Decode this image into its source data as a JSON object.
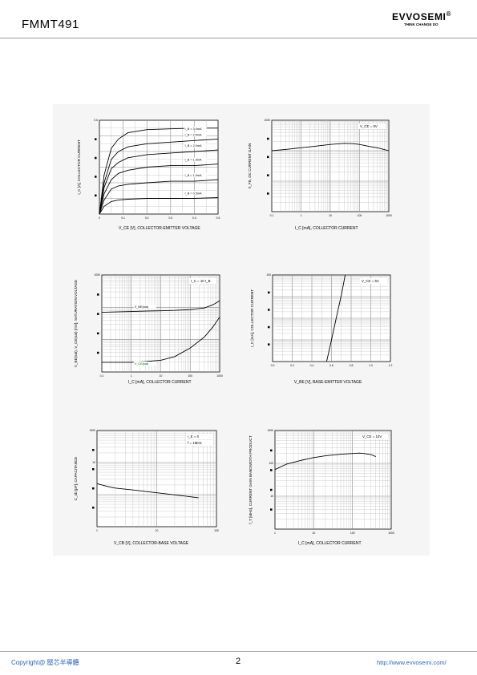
{
  "header": {
    "part_number": "FMMT491",
    "logo": "EVVOSEMI",
    "logo_mark": "®",
    "tagline": "THINK CHANGE DO"
  },
  "footer": {
    "copyright": "Copyright@ 壓芯半導體",
    "page": "2",
    "url": "http://www.evvosemi.com/"
  },
  "chart_data": [
    {
      "type": "line",
      "xlabel": "V_CE [V], COLLECTOR-EMITTER VOLTAGE",
      "ylabel": "I_C [A], COLLECTOR CURRENT",
      "xlim": [
        0,
        0.5
      ],
      "ylim": [
        0,
        0.6
      ],
      "x_ticks": [
        "0",
        "0.1",
        "0.2",
        "0.3",
        "0.4",
        "0.5"
      ],
      "y_ticks": [
        "0.6"
      ],
      "series": [
        {
          "name": "I_B = 3.0mA",
          "x": [
            0,
            0.02,
            0.05,
            0.08,
            0.12,
            0.2,
            0.3,
            0.4,
            0.5
          ],
          "y": [
            0,
            0.25,
            0.42,
            0.48,
            0.52,
            0.54,
            0.545,
            0.55,
            0.55
          ]
        },
        {
          "name": "I_B = 2.5mA",
          "x": [
            0,
            0.02,
            0.05,
            0.08,
            0.12,
            0.2,
            0.3,
            0.4,
            0.5
          ],
          "y": [
            0,
            0.2,
            0.35,
            0.4,
            0.43,
            0.45,
            0.46,
            0.47,
            0.48
          ]
        },
        {
          "name": "I_B = 2.0mA",
          "x": [
            0,
            0.02,
            0.05,
            0.08,
            0.12,
            0.2,
            0.3,
            0.4,
            0.5
          ],
          "y": [
            0,
            0.17,
            0.29,
            0.33,
            0.36,
            0.38,
            0.39,
            0.4,
            0.41
          ]
        },
        {
          "name": "I_B = 1.5mA",
          "x": [
            0,
            0.02,
            0.05,
            0.08,
            0.12,
            0.2,
            0.3,
            0.4,
            0.5
          ],
          "y": [
            0,
            0.13,
            0.22,
            0.26,
            0.28,
            0.3,
            0.31,
            0.31,
            0.32
          ]
        },
        {
          "name": "I_B = 1.0mA",
          "x": [
            0,
            0.02,
            0.05,
            0.08,
            0.12,
            0.2,
            0.3,
            0.4,
            0.5
          ],
          "y": [
            0,
            0.09,
            0.16,
            0.18,
            0.19,
            0.2,
            0.21,
            0.21,
            0.22
          ]
        },
        {
          "name": "I_B = 0.5mA",
          "x": [
            0,
            0.02,
            0.05,
            0.08,
            0.12,
            0.2,
            0.3,
            0.4,
            0.5
          ],
          "y": [
            0,
            0.05,
            0.08,
            0.09,
            0.095,
            0.1,
            0.1,
            0.1,
            0.105
          ]
        }
      ]
    },
    {
      "type": "line",
      "xlabel": "I_C [mA], COLLECTOR CURRENT",
      "ylabel": "h_FE, DC CURRENT GAIN",
      "xscale": "log",
      "yscale": "log",
      "xlim": [
        0.1,
        1000
      ],
      "ylim": [
        1,
        1000
      ],
      "x_ticks": [
        "0.1",
        "1",
        "10",
        "100",
        "1000"
      ],
      "y_ticks": [
        "1000"
      ],
      "annotations": [
        "V_CE = 5V"
      ],
      "series": [
        {
          "name": "",
          "x": [
            0.1,
            0.3,
            1,
            3,
            10,
            30,
            60,
            100,
            200,
            400,
            1000
          ],
          "y": [
            100,
            110,
            125,
            140,
            160,
            175,
            170,
            160,
            140,
            125,
            100
          ]
        }
      ]
    },
    {
      "type": "line",
      "xlabel": "I_C [mA], COLLECTOR CURRENT",
      "ylabel": "V_BE(sat), V_CE(sat) [mV], SATURATION VOLTAGE",
      "xscale": "log",
      "yscale": "log",
      "xlim": [
        0.1,
        1000
      ],
      "ylim": [
        1,
        1000
      ],
      "x_ticks": [
        "0.1",
        "1",
        "10",
        "100",
        "1000"
      ],
      "y_ticks": [
        "1000"
      ],
      "annotations": [
        "I_C = 10 I_B"
      ],
      "series": [
        {
          "name": "V_BE(sat)",
          "x": [
            0.1,
            0.3,
            1,
            3,
            10,
            30,
            100,
            300,
            600,
            1000
          ],
          "y": [
            70,
            72,
            74,
            76,
            78,
            80,
            85,
            95,
            120,
            160
          ]
        },
        {
          "name": "V_CE(sat)",
          "x": [
            0.1,
            0.3,
            1,
            3,
            10,
            30,
            100,
            300,
            600,
            1000
          ],
          "y": [
            2,
            2,
            2,
            2.1,
            2.3,
            3,
            5.5,
            12,
            25,
            50
          ]
        }
      ]
    },
    {
      "type": "line",
      "xlabel": "V_BE [V], BASE-EMITTER VOLTAGE",
      "ylabel": "I_C [mA], COLLECTOR CURRENT",
      "yscale": "log",
      "xlim": [
        0,
        1.2
      ],
      "ylim": [
        0.01,
        100
      ],
      "x_ticks": [
        "0.0",
        "0.2",
        "0.4",
        "0.6",
        "0.8",
        "1.0",
        "1.2"
      ],
      "y_ticks": [
        "100"
      ],
      "annotations": [
        "V_CE = 5V"
      ],
      "series": [
        {
          "name": "",
          "x": [
            0.55,
            0.6,
            0.65,
            0.7,
            0.74
          ],
          "y": [
            0.01,
            0.1,
            1.1,
            12,
            100
          ]
        }
      ]
    },
    {
      "type": "line",
      "xlabel": "V_CB [V], COLLECTOR-BASE VOLTAGE",
      "ylabel": "C_ob [pF], CAPACITANCE",
      "xscale": "log",
      "yscale": "log",
      "xlim": [
        1,
        100
      ],
      "ylim": [
        1,
        1000
      ],
      "x_ticks": [
        "1",
        "10",
        "100"
      ],
      "y_ticks": [
        "1000",
        "10"
      ],
      "annotations": [
        "I_E = 0",
        "f = 1MHz"
      ],
      "series": [
        {
          "name": "",
          "x": [
            1,
            1.5,
            2,
            4,
            8,
            15,
            30,
            50
          ],
          "y": [
            22,
            18,
            16,
            14,
            12,
            10.5,
            9,
            8
          ]
        }
      ]
    },
    {
      "type": "line",
      "xlabel": "I_C [mA], COLLECTOR CURRENT",
      "ylabel": "f_T [MHz], CURRENT GAIN BANDWIDTH PRODUCT",
      "xscale": "log",
      "yscale": "log",
      "xlim": [
        1,
        1000
      ],
      "ylim": [
        1,
        1000
      ],
      "x_ticks": [
        "1",
        "10",
        "100",
        "1000"
      ],
      "y_ticks": [
        "1000",
        "100",
        "10"
      ],
      "annotations": [
        "V_CE = 10V"
      ],
      "series": [
        {
          "name": "",
          "x": [
            1,
            2,
            5,
            10,
            20,
            50,
            100,
            150,
            200,
            300,
            400
          ],
          "y": [
            65,
            95,
            125,
            150,
            170,
            190,
            200,
            205,
            200,
            185,
            160
          ]
        }
      ]
    }
  ]
}
